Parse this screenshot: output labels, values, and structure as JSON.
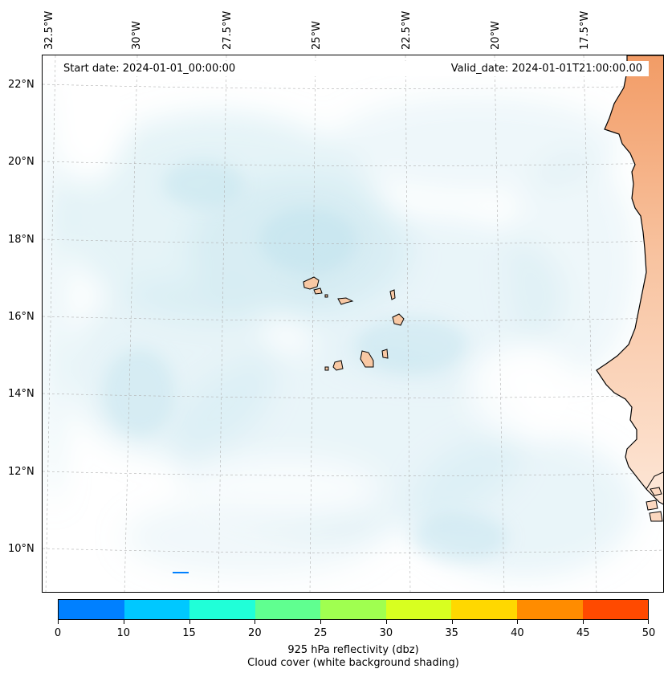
{
  "info": {
    "start_date": "Start date: 2024-01-01_00:00:00",
    "valid_date": "Valid_date: 2024-01-01T21:00:00.00"
  },
  "axes": {
    "longitudes": [
      "32.5°W",
      "30°W",
      "27.5°W",
      "25°W",
      "22.5°W",
      "20°W",
      "17.5°W"
    ],
    "latitudes": [
      "22°N",
      "20°N",
      "18°N",
      "16°N",
      "14°N",
      "12°N",
      "10°N"
    ]
  },
  "colorbar": {
    "ticks": [
      "0",
      "10",
      "15",
      "20",
      "25",
      "30",
      "35",
      "40",
      "45",
      "50"
    ],
    "colors": [
      "#0080ff",
      "#00c8ff",
      "#20ffd8",
      "#60ff90",
      "#a0ff50",
      "#d8ff20",
      "#ffd800",
      "#ff8c00",
      "#ff4a00"
    ],
    "label": "925 hPa reflectivity (dbz)",
    "sublabel": "Cloud cover (white background shading)"
  },
  "colors": {
    "cloud_shading": "#a8d8e6",
    "land_fill": "#f4a06a",
    "land_light": "#fbd4b8",
    "coastline": "#000000",
    "gridline": "#b0b0b0"
  }
}
